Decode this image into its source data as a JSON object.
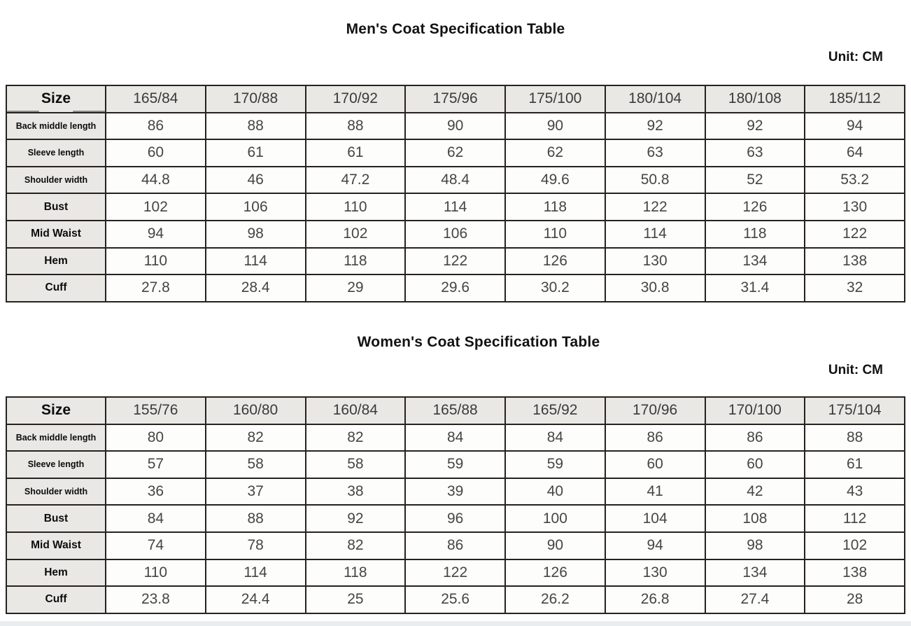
{
  "tables": [
    {
      "title": "Men's Coat Specification Table",
      "unit": "Unit: CM",
      "corner_label": "Size",
      "sizes": [
        "165/84",
        "170/88",
        "170/92",
        "175/96",
        "175/100",
        "180/104",
        "180/108",
        "185/112"
      ],
      "rows": [
        {
          "label": "Back middle length",
          "small": true,
          "values": [
            "86",
            "88",
            "88",
            "90",
            "90",
            "92",
            "92",
            "94"
          ]
        },
        {
          "label": "Sleeve length",
          "small": true,
          "values": [
            "60",
            "61",
            "61",
            "62",
            "62",
            "63",
            "63",
            "64"
          ]
        },
        {
          "label": "Shoulder width",
          "small": true,
          "values": [
            "44.8",
            "46",
            "47.2",
            "48.4",
            "49.6",
            "50.8",
            "52",
            "53.2"
          ]
        },
        {
          "label": "Bust",
          "small": false,
          "values": [
            "102",
            "106",
            "110",
            "114",
            "118",
            "122",
            "126",
            "130"
          ]
        },
        {
          "label": "Mid Waist",
          "small": false,
          "values": [
            "94",
            "98",
            "102",
            "106",
            "110",
            "114",
            "118",
            "122"
          ]
        },
        {
          "label": "Hem",
          "small": false,
          "values": [
            "110",
            "114",
            "118",
            "122",
            "126",
            "130",
            "134",
            "138"
          ]
        },
        {
          "label": "Cuff",
          "small": false,
          "values": [
            "27.8",
            "28.4",
            "29",
            "29.6",
            "30.2",
            "30.8",
            "31.4",
            "32"
          ]
        }
      ]
    },
    {
      "title": "Women's Coat Specification Table",
      "unit": "Unit: CM",
      "corner_label": "Size",
      "sizes": [
        "155/76",
        "160/80",
        "160/84",
        "165/88",
        "165/92",
        "170/96",
        "170/100",
        "175/104"
      ],
      "rows": [
        {
          "label": "Back middle length",
          "small": true,
          "values": [
            "80",
            "82",
            "82",
            "84",
            "84",
            "86",
            "86",
            "88"
          ]
        },
        {
          "label": "Sleeve length",
          "small": true,
          "values": [
            "57",
            "58",
            "58",
            "59",
            "59",
            "60",
            "60",
            "61"
          ]
        },
        {
          "label": "Shoulder width",
          "small": true,
          "values": [
            "36",
            "37",
            "38",
            "39",
            "40",
            "41",
            "42",
            "43"
          ]
        },
        {
          "label": "Bust",
          "small": false,
          "values": [
            "84",
            "88",
            "92",
            "96",
            "100",
            "104",
            "108",
            "112"
          ]
        },
        {
          "label": "Mid Waist",
          "small": false,
          "values": [
            "74",
            "78",
            "82",
            "86",
            "90",
            "94",
            "98",
            "102"
          ]
        },
        {
          "label": "Hem",
          "small": false,
          "values": [
            "110",
            "114",
            "118",
            "122",
            "126",
            "130",
            "134",
            "138"
          ]
        },
        {
          "label": "Cuff",
          "small": false,
          "values": [
            "23.8",
            "24.4",
            "25",
            "25.6",
            "26.2",
            "26.8",
            "27.4",
            "28"
          ]
        }
      ]
    }
  ]
}
